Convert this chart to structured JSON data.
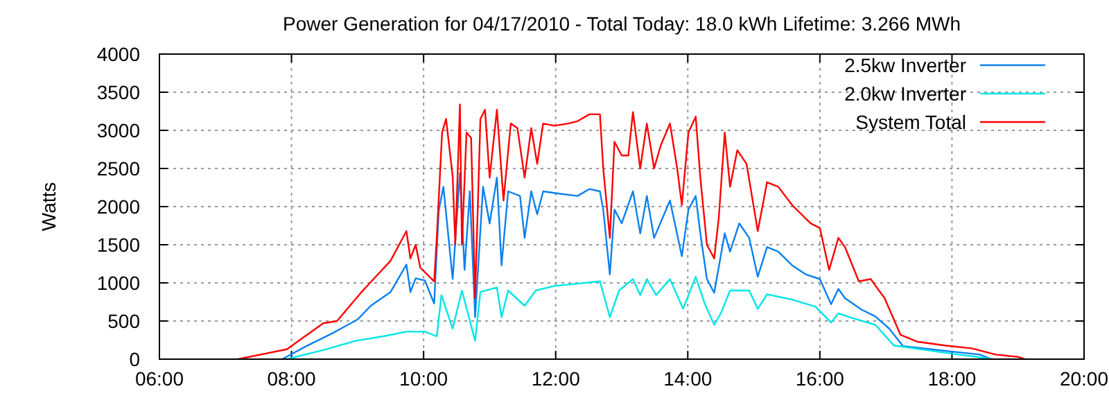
{
  "chart_data": {
    "type": "line",
    "title": "Power Generation for 04/17/2010 - Total Today: 18.0 kWh   Lifetime: 3.266 MWh",
    "ylabel": "Watts",
    "xlim": [
      6,
      20
    ],
    "xticks": [
      {
        "value": 6,
        "label": "06:00"
      },
      {
        "value": 8,
        "label": "08:00"
      },
      {
        "value": 10,
        "label": "10:00"
      },
      {
        "value": 12,
        "label": "12:00"
      },
      {
        "value": 14,
        "label": "14:00"
      },
      {
        "value": 16,
        "label": "16:00"
      },
      {
        "value": 18,
        "label": "18:00"
      },
      {
        "value": 20,
        "label": "20:00"
      }
    ],
    "ylim": [
      0,
      4000
    ],
    "yticks": [
      0,
      500,
      1000,
      1500,
      2000,
      2500,
      3000,
      3500,
      4000
    ],
    "grid": true,
    "legend": "top right",
    "line_style": "solid",
    "marker": "none",
    "series": [
      {
        "name": "2.5kw Inverter",
        "color": "#0a80f0",
        "x": [
          7.86,
          8.2,
          8.62,
          9.0,
          9.2,
          9.5,
          9.74,
          9.8,
          9.88,
          10.02,
          10.16,
          10.23,
          10.3,
          10.44,
          10.55,
          10.62,
          10.7,
          10.78,
          10.9,
          11.0,
          11.11,
          11.18,
          11.28,
          11.46,
          11.53,
          11.63,
          11.72,
          11.81,
          12.05,
          12.33,
          12.51,
          12.67,
          12.72,
          12.82,
          12.89,
          13.0,
          13.17,
          13.28,
          13.38,
          13.49,
          13.73,
          13.91,
          14.01,
          14.12,
          14.19,
          14.29,
          14.4,
          14.56,
          14.64,
          14.78,
          14.93,
          15.06,
          15.2,
          15.37,
          15.58,
          15.79,
          16.0,
          16.17,
          16.28,
          16.38,
          16.63,
          16.84,
          17.05,
          17.26,
          17.68,
          18.1,
          18.42,
          18.6
        ],
        "values": [
          0,
          160,
          340,
          520,
          700,
          880,
          1240,
          880,
          1060,
          1030,
          730,
          1950,
          2260,
          1050,
          2440,
          1170,
          2200,
          550,
          2260,
          1780,
          2380,
          1230,
          2200,
          2140,
          1590,
          2200,
          1900,
          2200,
          2170,
          2140,
          2230,
          2200,
          1960,
          1110,
          1960,
          1780,
          2200,
          1650,
          2140,
          1590,
          2080,
          1350,
          1960,
          2140,
          1650,
          1050,
          870,
          1650,
          1410,
          1780,
          1590,
          1080,
          1470,
          1410,
          1230,
          1110,
          1050,
          720,
          920,
          800,
          650,
          560,
          400,
          170,
          130,
          90,
          60,
          0
        ]
      },
      {
        "name": "2.0kw Inverter",
        "color": "#00e6e6",
        "x": [
          7.93,
          8.48,
          8.97,
          9.39,
          9.74,
          10.02,
          10.2,
          10.27,
          10.44,
          10.58,
          10.78,
          10.86,
          11.11,
          11.18,
          11.28,
          11.53,
          11.7,
          11.98,
          12.33,
          12.67,
          12.82,
          12.96,
          13.17,
          13.28,
          13.38,
          13.52,
          13.73,
          13.93,
          14.12,
          14.26,
          14.4,
          14.5,
          14.64,
          14.93,
          15.06,
          15.2,
          15.58,
          15.93,
          16.17,
          16.28,
          16.49,
          16.84,
          17.12,
          17.68,
          18.1,
          18.38,
          18.6
        ],
        "values": [
          0,
          120,
          240,
          300,
          360,
          360,
          300,
          840,
          400,
          900,
          240,
          880,
          940,
          550,
          900,
          700,
          900,
          960,
          990,
          1020,
          550,
          900,
          1050,
          840,
          1050,
          840,
          1050,
          660,
          1080,
          720,
          450,
          600,
          900,
          900,
          660,
          850,
          780,
          690,
          480,
          600,
          540,
          450,
          180,
          110,
          60,
          30,
          0
        ]
      },
      {
        "name": "System Total",
        "color": "#ff0000",
        "x": [
          7.19,
          7.93,
          8.48,
          8.69,
          9.04,
          9.21,
          9.5,
          9.74,
          9.8,
          9.88,
          9.95,
          10.16,
          10.2,
          10.28,
          10.34,
          10.44,
          10.48,
          10.55,
          10.58,
          10.65,
          10.72,
          10.78,
          10.86,
          10.93,
          11.0,
          11.11,
          11.21,
          11.32,
          11.42,
          11.53,
          11.63,
          11.72,
          11.81,
          11.98,
          12.19,
          12.33,
          12.51,
          12.67,
          12.72,
          12.82,
          12.89,
          13.0,
          13.1,
          13.17,
          13.28,
          13.38,
          13.49,
          13.59,
          13.73,
          13.84,
          13.91,
          14.01,
          14.12,
          14.19,
          14.29,
          14.4,
          14.47,
          14.56,
          14.64,
          14.75,
          14.89,
          15.06,
          15.2,
          15.37,
          15.58,
          15.86,
          16.0,
          16.14,
          16.28,
          16.38,
          16.59,
          16.77,
          16.98,
          17.22,
          17.47,
          17.89,
          18.31,
          18.66,
          19.0,
          19.1
        ],
        "values": [
          0,
          130,
          470,
          500,
          860,
          1020,
          1290,
          1680,
          1320,
          1500,
          1200,
          1020,
          1600,
          2970,
          3150,
          2400,
          1500,
          3340,
          1500,
          2970,
          2900,
          800,
          3150,
          3270,
          2380,
          3270,
          2080,
          3090,
          3030,
          2380,
          3030,
          2560,
          3090,
          3060,
          3090,
          3120,
          3210,
          3210,
          2500,
          1590,
          2850,
          2670,
          2670,
          3240,
          2500,
          3090,
          2500,
          2800,
          3090,
          2500,
          2020,
          2970,
          3180,
          2380,
          1500,
          1320,
          1860,
          2970,
          2260,
          2740,
          2560,
          1680,
          2320,
          2260,
          2020,
          1780,
          1720,
          1170,
          1590,
          1470,
          1020,
          1050,
          800,
          320,
          230,
          180,
          140,
          60,
          30,
          0
        ]
      }
    ]
  }
}
